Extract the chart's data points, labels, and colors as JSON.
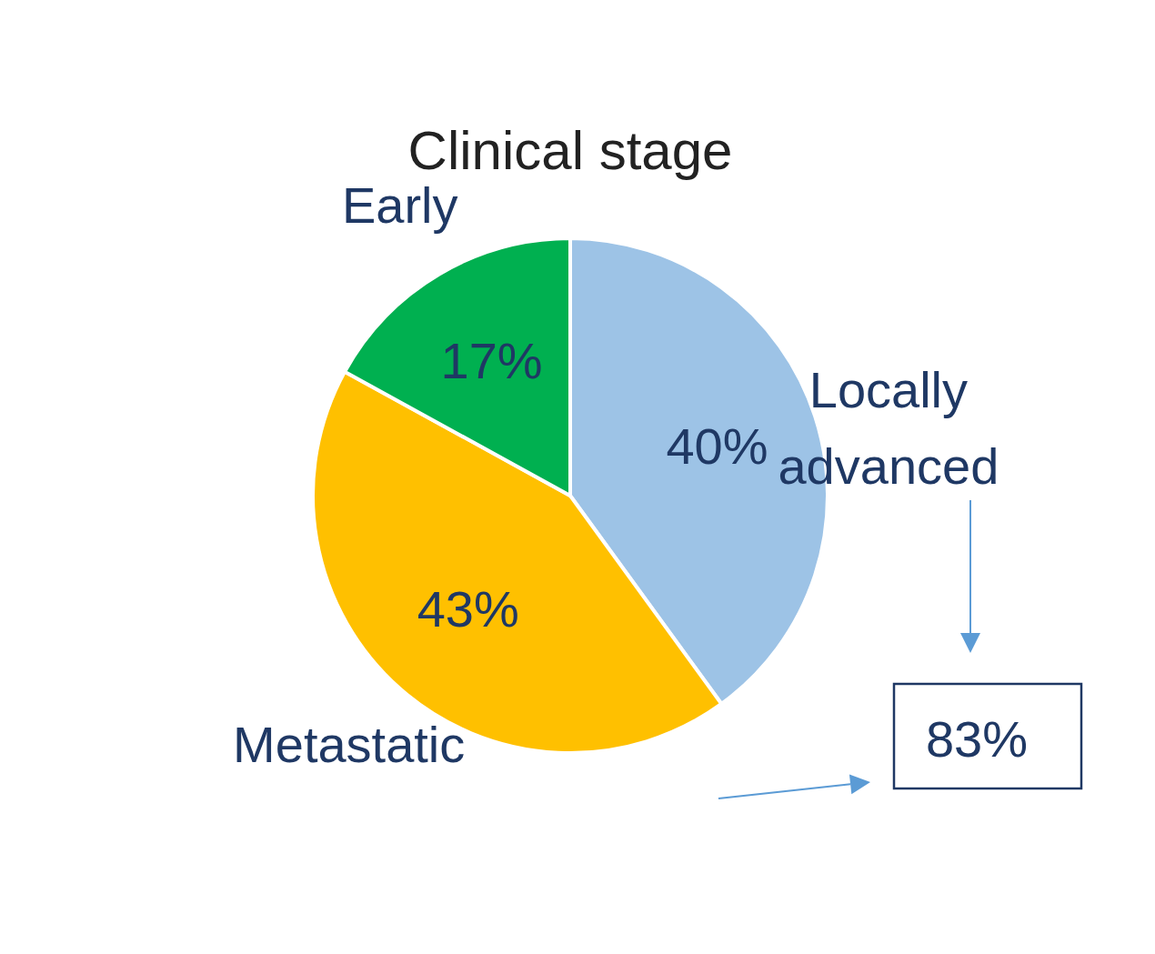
{
  "chart_data": {
    "type": "pie",
    "title": "Clinical stage",
    "categories": [
      "Locally advanced",
      "Metastatic",
      "Early"
    ],
    "values": [
      40,
      43,
      17
    ],
    "colors": [
      "#9dc3e6",
      "#ffc000",
      "#00b050"
    ],
    "value_labels": [
      "40%",
      "43%",
      "17%"
    ],
    "annotations": [
      "83%"
    ]
  }
}
